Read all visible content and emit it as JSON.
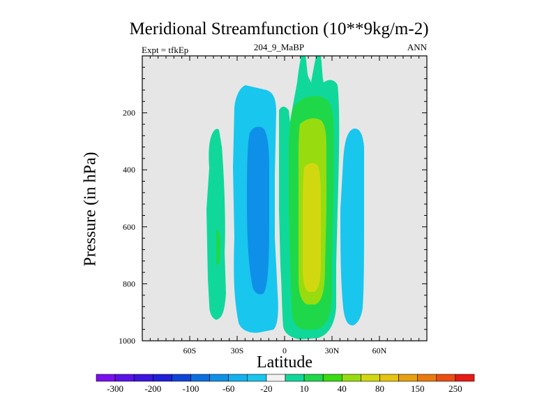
{
  "chart_data": {
    "type": "filled-contour",
    "title": "Meridional Streamfunction (10**9kg/m-2)",
    "left_label": "Expt = tfkEp",
    "center_label": "204_9_MaBP",
    "right_label": "ANN",
    "xlabel": "Latitude",
    "ylabel": "Pressure (in hPa)",
    "xlim": [
      -90,
      90
    ],
    "ylim": [
      1000,
      0
    ],
    "y_axis_inverted": true,
    "background_color": "#e6e6e6",
    "x_ticks": [
      {
        "value": -60,
        "label": "60S"
      },
      {
        "value": -30,
        "label": "30S"
      },
      {
        "value": 0,
        "label": "0"
      },
      {
        "value": 30,
        "label": "30N"
      },
      {
        "value": 60,
        "label": "60N"
      }
    ],
    "y_ticks": [
      {
        "value": 200,
        "label": "200"
      },
      {
        "value": 400,
        "label": "400"
      },
      {
        "value": 600,
        "label": "600"
      },
      {
        "value": 800,
        "label": "800"
      },
      {
        "value": 1000,
        "label": "1000"
      }
    ],
    "colorbar": {
      "colors": [
        "#7a0ff0",
        "#5a12e8",
        "#3b14e0",
        "#1f20d8",
        "#0f44d8",
        "#0d6ee0",
        "#0f90e8",
        "#12b2ee",
        "#19c6ee",
        "#f2f2f2",
        "#10d89a",
        "#1ed84a",
        "#38dc10",
        "#98dc10",
        "#d2d810",
        "#e6c410",
        "#e8a010",
        "#ea7a10",
        "#ec4e12",
        "#e81a14"
      ],
      "labels": [
        "-300",
        "-200",
        "-100",
        "-60",
        "-20",
        "10",
        "40",
        "80",
        "150",
        "250"
      ]
    },
    "cells": [
      {
        "lon": [
          -45,
          -35
        ],
        "p": [
          260,
          960
        ],
        "value": 10
      },
      {
        "lon": [
          -42,
          -38
        ],
        "p": [
          580,
          780
        ],
        "value": 40
      },
      {
        "lon": [
          -32,
          -14
        ],
        "p": [
          100,
          960
        ],
        "value": -20
      },
      {
        "lon": [
          -28,
          -17
        ],
        "p": [
          230,
          820
        ],
        "value": -60
      },
      {
        "lon": [
          -2,
          30
        ],
        "p": [
          0,
          990
        ],
        "value": 10
      },
      {
        "lon": [
          7,
          27
        ],
        "p": [
          150,
          970
        ],
        "value": 40
      },
      {
        "lon": [
          10,
          25
        ],
        "p": [
          240,
          880
        ],
        "value": 80
      },
      {
        "lon": [
          12,
          22
        ],
        "p": [
          420,
          830
        ],
        "value": 150
      },
      {
        "lon": [
          35,
          50
        ],
        "p": [
          260,
          960
        ],
        "value": -20
      }
    ]
  }
}
